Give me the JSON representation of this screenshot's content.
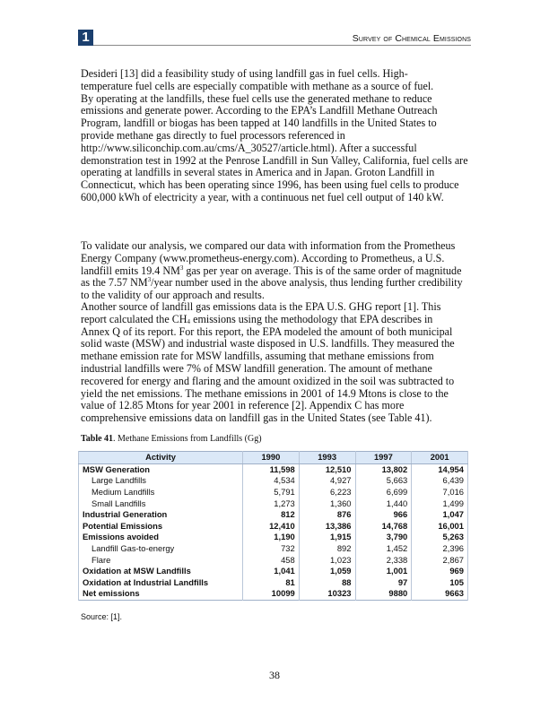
{
  "header": {
    "chapter_number": "1",
    "title": "Survey of Chemical Emissions",
    "accent_color": "#1b3f6e"
  },
  "paragraphs": [
    [
      {
        "t": "Desideri [13] did a feasibility study of using landfill gas in fuel cells.  High-"
      },
      {
        "t": "temperature fuel cells are especially compatible with methane as a source of fuel."
      },
      {
        "t": "By operating at the landfills, these fuel cells use the generated methane to reduce"
      },
      {
        "t": "emissions and generate power.  According to the EPA’s Landfill Methane Outreach"
      },
      {
        "t": "Program, landfill or biogas has been tapped at 140 landfills in the United States to"
      },
      {
        "t": "provide methane gas directly to fuel processors referenced in"
      },
      {
        "t": "http://www.siliconchip.com.au/cms/A_30527/article.html).  After a successful"
      },
      {
        "t": "demonstration test in 1992 at the Penrose Landfill in Sun Valley, California, fuel cells are"
      },
      {
        "t": "operating at landfills in several states in America and in Japan.  Groton Landfill in"
      },
      {
        "t": "Connecticut, which has been operating since 1996, has been using fuel cells to produce"
      },
      {
        "t": "600,000 kWh of electricity a year, with a continuous net fuel cell output of 140 kW."
      }
    ],
    [
      {
        "t": "To validate our analysis, we compared our data with information from the Prometheus"
      },
      {
        "t": "Energy Company (www.prometheus-energy.com).  According to Prometheus, a U.S."
      },
      {
        "t": "landfill emits 19.4 NM",
        "sup": "3",
        "t2": " gas per year on average.  This is of the same order of magnitude"
      },
      {
        "t": "as the 7.57 NM",
        "sup": "3",
        "t2": "/year number used in the above analysis, thus lending further credibility"
      },
      {
        "t": "to the validity of our approach and results."
      }
    ],
    [
      {
        "t": "Another source of landfill gas emissions data is the EPA U.S. GHG report [1].  This"
      },
      {
        "t": "report calculated the CH",
        "sub": "4",
        "t2": " emissions using the methodology that EPA describes in"
      },
      {
        "t": "Annex Q of its report.  For this report, the EPA modeled the amount of both municipal"
      },
      {
        "t": "solid waste (MSW) and industrial waste disposed in U.S. landfills.  They measured the"
      },
      {
        "t": "methane emission rate for MSW landfills, assuming that methane emissions from"
      },
      {
        "t": "industrial landfills were 7% of MSW landfill generation.  The amount of methane"
      },
      {
        "t": "recovered for energy and flaring and the amount oxidized in the soil was subtracted to"
      },
      {
        "t": "yield the net emissions.  The methane emissions in 2001 of 14.9 Mtons is close to the"
      },
      {
        "t": "value of 12.85 Mtons for year 2001 in reference [2].  Appendix C has more"
      },
      {
        "t": "comprehensive emissions data on landfill gas in the United States (see Table 41)."
      }
    ]
  ],
  "table": {
    "label": "Table 41",
    "caption": ".  Methane Emissions from Landfills (Gg)",
    "headers": [
      "Activity",
      "1990",
      "1993",
      "1997",
      "2001"
    ],
    "rows": [
      {
        "cells": [
          "MSW Generation",
          "11,598",
          "12,510",
          "13,802",
          "14,954"
        ],
        "bold": true,
        "indent": false
      },
      {
        "cells": [
          "Large Landfills",
          "4,534",
          "4,927",
          "5,663",
          "6,439"
        ],
        "bold": false,
        "indent": true
      },
      {
        "cells": [
          "Medium Landfills",
          "5,791",
          "6,223",
          "6,699",
          "7,016"
        ],
        "bold": false,
        "indent": true
      },
      {
        "cells": [
          "Small Landfills",
          "1,273",
          "1,360",
          "1,440",
          "1,499"
        ],
        "bold": false,
        "indent": true
      },
      {
        "cells": [
          "Industrial Generation",
          "812",
          "876",
          "966",
          "1,047"
        ],
        "bold": true,
        "indent": false
      },
      {
        "cells": [
          "Potential Emissions",
          "12,410",
          "13,386",
          "14,768",
          "16,001"
        ],
        "bold": true,
        "indent": false
      },
      {
        "cells": [
          "Emissions avoided",
          "1,190",
          "1,915",
          "3,790",
          "5,263"
        ],
        "bold": true,
        "indent": false
      },
      {
        "cells": [
          "Landfill Gas-to-energy",
          "732",
          "892",
          "1,452",
          "2,396"
        ],
        "bold": false,
        "indent": true
      },
      {
        "cells": [
          "Flare",
          "458",
          "1,023",
          "2,338",
          "2,867"
        ],
        "bold": false,
        "indent": true
      },
      {
        "cells": [
          "Oxidation at MSW Landfills",
          "1,041",
          "1,059",
          "1,001",
          "969"
        ],
        "bold": true,
        "indent": false
      },
      {
        "cells": [
          "Oxidation at Industrial Landfills",
          "81",
          "88",
          "97",
          "105"
        ],
        "bold": true,
        "indent": false
      },
      {
        "cells": [
          "Net emissions",
          "10099",
          "10323",
          "9880",
          "9663"
        ],
        "bold": true,
        "indent": false
      }
    ],
    "source": "Source: [1]."
  },
  "page_number": "38"
}
